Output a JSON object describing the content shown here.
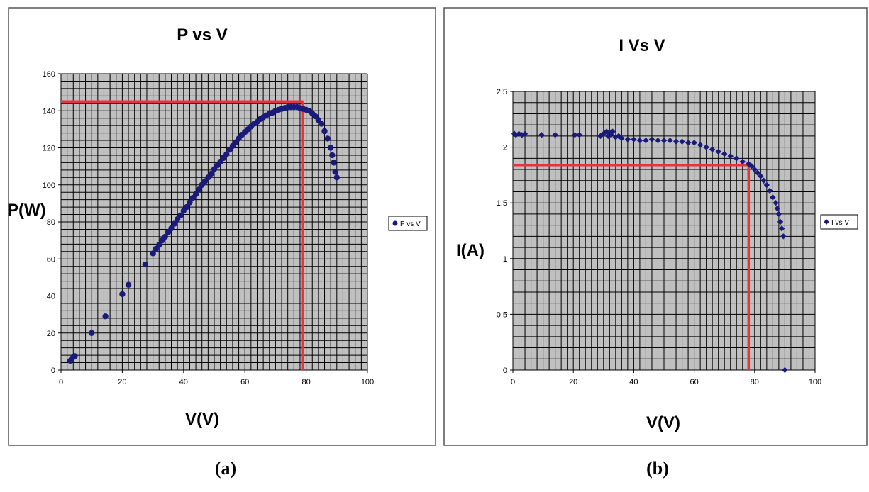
{
  "chart_data": [
    {
      "type": "scatter",
      "title": "P vs V",
      "xlabel": "V(V)",
      "ylabel": "P(W)",
      "xlim": [
        0,
        100
      ],
      "ylim": [
        0,
        160
      ],
      "x_ticks": [
        0,
        20,
        40,
        60,
        80,
        100
      ],
      "y_ticks": [
        0,
        20,
        40,
        60,
        80,
        100,
        120,
        140,
        160
      ],
      "grid": true,
      "legend_position": "right",
      "colors": {
        "points": "#1a1a7a",
        "reference_lines": "#e8323c",
        "plot_background": "#c0c0c0"
      },
      "series": [
        {
          "name": "P vs V",
          "marker": "circle",
          "x": [
            3,
            3.5,
            4,
            4.5,
            10,
            14.5,
            20,
            22,
            27.5,
            30,
            31,
            32,
            33,
            34,
            35,
            36,
            37,
            38,
            39,
            40,
            41,
            42,
            43,
            44,
            45,
            46,
            47,
            48,
            49,
            50,
            51,
            52,
            53,
            54,
            55,
            56,
            57,
            58,
            59,
            60,
            61,
            62,
            63,
            64,
            65,
            66,
            67,
            68,
            69,
            70,
            71,
            72,
            73,
            74,
            75,
            76,
            77,
            78,
            79,
            80,
            81,
            82,
            83,
            84,
            85,
            86,
            87,
            88,
            88.5,
            89,
            89.5,
            90
          ],
          "y": [
            5,
            6,
            7,
            7.5,
            20,
            29,
            41,
            46,
            57,
            63,
            65.5,
            67.5,
            70,
            72,
            74.5,
            76.5,
            79,
            81.5,
            83.5,
            86,
            88,
            90.5,
            93,
            95,
            97.5,
            100,
            102,
            104,
            106,
            108.5,
            110.5,
            112.5,
            114.5,
            116.5,
            119,
            121,
            123,
            125,
            127,
            128.5,
            130,
            131.5,
            133,
            134,
            135.5,
            136.5,
            137.5,
            138.5,
            139,
            140,
            140.5,
            141,
            141.5,
            142,
            142,
            142,
            142,
            141.5,
            141,
            140.5,
            140,
            138.5,
            137,
            135,
            133,
            129,
            125,
            120,
            116,
            112,
            107,
            104
          ]
        }
      ],
      "reference_lines": {
        "x": 79,
        "y": 145
      }
    },
    {
      "type": "scatter",
      "title": "I Vs V",
      "xlabel": "V(V)",
      "ylabel": "I(A)",
      "xlim": [
        0,
        100
      ],
      "ylim": [
        0,
        2.5
      ],
      "x_ticks": [
        0,
        20,
        40,
        60,
        80,
        100
      ],
      "y_ticks": [
        0,
        0.5,
        1,
        1.5,
        2,
        2.5
      ],
      "y_tick_labels": [
        "0",
        "0.5",
        "1",
        "1.5",
        "2",
        "2.5"
      ],
      "grid": true,
      "legend_position": "right",
      "colors": {
        "points": "#1a1a7a",
        "reference_lines": "#e8323c",
        "plot_background": "#c0c0c0"
      },
      "series": [
        {
          "name": "I vs V",
          "marker": "diamond",
          "x": [
            0.5,
            1,
            2,
            3,
            4,
            9.5,
            14,
            20.5,
            22,
            29,
            30,
            31,
            31.5,
            32,
            32.5,
            33,
            34,
            35,
            36,
            38,
            40,
            42,
            44,
            46,
            48,
            50,
            52,
            54,
            56,
            58,
            60,
            62,
            64,
            66,
            68,
            70,
            72,
            74,
            76,
            78,
            79,
            80,
            81,
            82,
            83,
            84,
            85,
            86,
            87,
            87.5,
            88,
            88.5,
            89,
            89.5,
            90
          ],
          "y": [
            2.12,
            2.11,
            2.12,
            2.11,
            2.12,
            2.11,
            2.11,
            2.11,
            2.11,
            2.1,
            2.12,
            2.14,
            2.1,
            2.13,
            2.11,
            2.14,
            2.09,
            2.1,
            2.08,
            2.07,
            2.07,
            2.06,
            2.06,
            2.07,
            2.06,
            2.06,
            2.06,
            2.05,
            2.05,
            2.04,
            2.04,
            2.02,
            2.0,
            1.98,
            1.96,
            1.94,
            1.92,
            1.9,
            1.87,
            1.85,
            1.83,
            1.8,
            1.77,
            1.74,
            1.7,
            1.66,
            1.61,
            1.55,
            1.5,
            1.45,
            1.4,
            1.33,
            1.27,
            1.2,
            0.0
          ]
        }
      ],
      "reference_lines": {
        "x": 78,
        "y": 1.84
      }
    }
  ],
  "captions": [
    "(a)",
    "(b)"
  ]
}
